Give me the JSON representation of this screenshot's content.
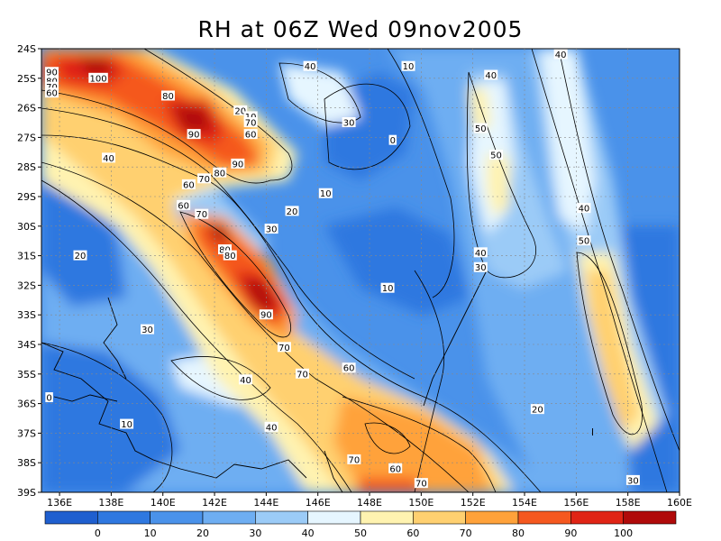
{
  "title": "RH at 06Z Wed 09nov2005",
  "lat_labels": [
    "24S",
    "25S",
    "26S",
    "27S",
    "28S",
    "29S",
    "30S",
    "31S",
    "32S",
    "33S",
    "34S",
    "35S",
    "36S",
    "37S",
    "38S",
    "39S"
  ],
  "lon_labels": [
    "136E",
    "138E",
    "140E",
    "142E",
    "144E",
    "146E",
    "148E",
    "150E",
    "152E",
    "154E",
    "156E",
    "158E",
    "160E"
  ],
  "colorbar": {
    "labels": [
      "0",
      "10",
      "20",
      "30",
      "40",
      "50",
      "60",
      "70",
      "80",
      "90",
      "100"
    ],
    "colors": [
      "#1f5fcf",
      "#2f78e0",
      "#4a92ea",
      "#6eaef2",
      "#9bcbf7",
      "#e6f6ff",
      "#fff3b0",
      "#ffd070",
      "#ffa23a",
      "#f5581f",
      "#e02415",
      "#b00a0a"
    ]
  },
  "contour_labels": [
    {
      "text": "90",
      "lon": 135.7,
      "lat": -24.8
    },
    {
      "text": "80",
      "lon": 135.7,
      "lat": -25.1
    },
    {
      "text": "70",
      "lon": 135.7,
      "lat": -25.3
    },
    {
      "text": "60",
      "lon": 135.7,
      "lat": -25.5
    },
    {
      "text": "100",
      "lon": 137.5,
      "lat": -25.0
    },
    {
      "text": "80",
      "lon": 140.2,
      "lat": -25.6
    },
    {
      "text": "90",
      "lon": 141.2,
      "lat": -26.9
    },
    {
      "text": "20",
      "lon": 143.0,
      "lat": -26.1
    },
    {
      "text": "10",
      "lon": 143.4,
      "lat": -26.3
    },
    {
      "text": "70",
      "lon": 143.4,
      "lat": -26.5
    },
    {
      "text": "60",
      "lon": 143.4,
      "lat": -26.9
    },
    {
      "text": "90",
      "lon": 142.9,
      "lat": -27.9
    },
    {
      "text": "80",
      "lon": 142.2,
      "lat": -28.2
    },
    {
      "text": "70",
      "lon": 141.6,
      "lat": -28.4
    },
    {
      "text": "60",
      "lon": 141.0,
      "lat": -28.6
    },
    {
      "text": "40",
      "lon": 145.7,
      "lat": -24.6
    },
    {
      "text": "10",
      "lon": 149.5,
      "lat": -24.6
    },
    {
      "text": "30",
      "lon": 147.2,
      "lat": -26.5
    },
    {
      "text": "0",
      "lon": 148.9,
      "lat": -27.1
    },
    {
      "text": "40",
      "lon": 137.9,
      "lat": -27.7
    },
    {
      "text": "10",
      "lon": 146.3,
      "lat": -28.9
    },
    {
      "text": "20",
      "lon": 145.0,
      "lat": -29.5
    },
    {
      "text": "30",
      "lon": 144.2,
      "lat": -30.1
    },
    {
      "text": "60",
      "lon": 140.8,
      "lat": -29.3
    },
    {
      "text": "70",
      "lon": 141.5,
      "lat": -29.6
    },
    {
      "text": "80",
      "lon": 142.4,
      "lat": -30.8
    },
    {
      "text": "80",
      "lon": 142.6,
      "lat": -31.0
    },
    {
      "text": "90",
      "lon": 144.0,
      "lat": -33.0
    },
    {
      "text": "20",
      "lon": 136.8,
      "lat": -31.0
    },
    {
      "text": "10",
      "lon": 148.7,
      "lat": -32.1
    },
    {
      "text": "70",
      "lon": 144.7,
      "lat": -34.1
    },
    {
      "text": "30",
      "lon": 139.4,
      "lat": -33.5
    },
    {
      "text": "40",
      "lon": 143.2,
      "lat": -35.2
    },
    {
      "text": "70",
      "lon": 145.4,
      "lat": -35.0
    },
    {
      "text": "60",
      "lon": 147.2,
      "lat": -34.8
    },
    {
      "text": "0",
      "lon": 135.6,
      "lat": -35.8
    },
    {
      "text": "10",
      "lon": 138.6,
      "lat": -36.7
    },
    {
      "text": "40",
      "lon": 144.2,
      "lat": -36.8
    },
    {
      "text": "70",
      "lon": 147.4,
      "lat": -37.9
    },
    {
      "text": "60",
      "lon": 149.0,
      "lat": -38.2
    },
    {
      "text": "70",
      "lon": 150.0,
      "lat": -38.7
    },
    {
      "text": "40",
      "lon": 152.7,
      "lat": -24.9
    },
    {
      "text": "40",
      "lon": 155.4,
      "lat": -24.2
    },
    {
      "text": "50",
      "lon": 152.3,
      "lat": -26.7
    },
    {
      "text": "50",
      "lon": 152.9,
      "lat": -27.6
    },
    {
      "text": "40",
      "lon": 156.3,
      "lat": -29.4
    },
    {
      "text": "40",
      "lon": 152.3,
      "lat": -30.9
    },
    {
      "text": "30",
      "lon": 152.3,
      "lat": -31.4
    },
    {
      "text": "50",
      "lon": 156.3,
      "lat": -30.5
    },
    {
      "text": "20",
      "lon": 154.5,
      "lat": -36.2
    },
    {
      "text": "30",
      "lon": 158.2,
      "lat": -38.6
    }
  ]
}
